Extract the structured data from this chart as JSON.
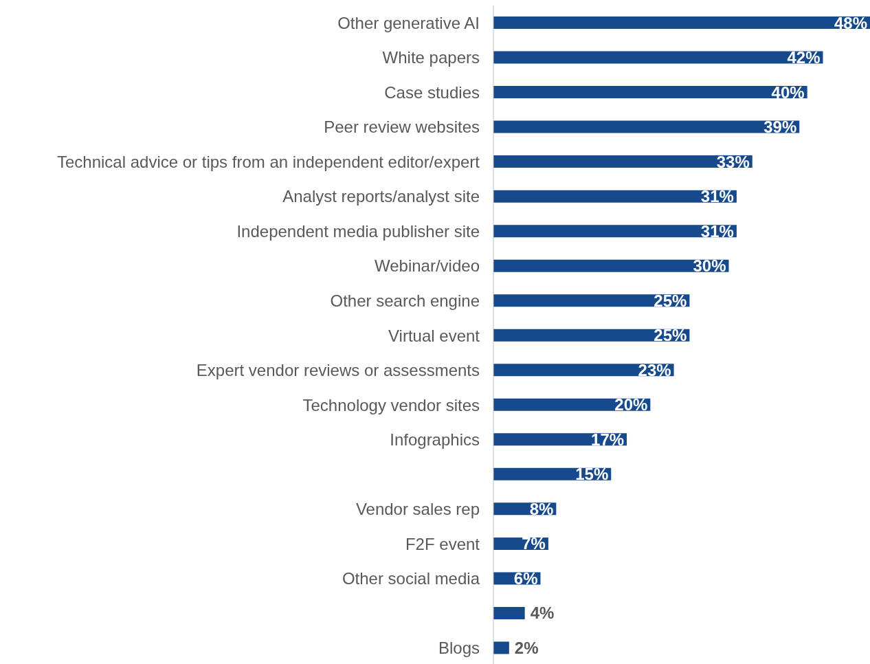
{
  "chart_data": {
    "type": "bar",
    "orientation": "horizontal",
    "color": "#174a8c",
    "categories": [
      "Other generative AI",
      "White papers",
      "Case studies",
      "Peer review websites",
      "Technical advice or tips from an independent editor/expert",
      "Analyst reports/analyst site",
      "Independent media publisher site",
      "Webinar/video",
      "Other search engine",
      "Virtual event",
      "Expert vendor reviews or assessments",
      "Technology vendor sites",
      "Infographics",
      null,
      "Vendor sales rep",
      "F2F event",
      "Other social media",
      null,
      "Blogs"
    ],
    "values": [
      48,
      42,
      40,
      39,
      33,
      31,
      31,
      30,
      25,
      25,
      23,
      20,
      17,
      15,
      8,
      7,
      6,
      4,
      2
    ],
    "value_labels": [
      "48%",
      "42%",
      "40%",
      "39%",
      "33%",
      "31%",
      "31%",
      "30%",
      "25%",
      "25%",
      "23%",
      "20%",
      "17%",
      "15%",
      "8%",
      "7%",
      "6%",
      "4%",
      "2%"
    ],
    "tick_labels": "y"
  }
}
